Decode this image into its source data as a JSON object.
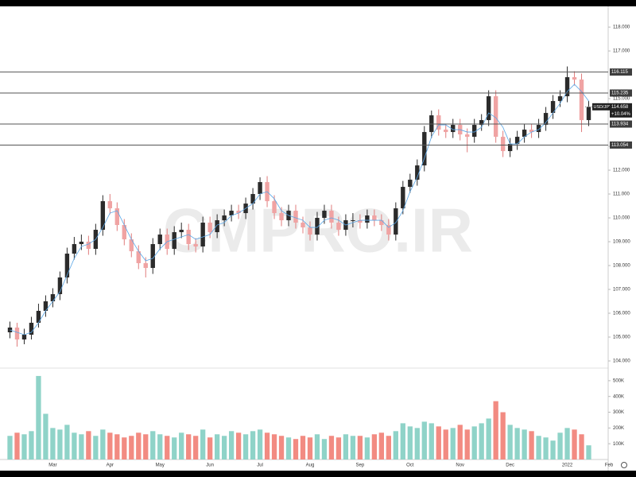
{
  "chart_data": {
    "type": "candlestick",
    "symbol": "USD/JPY",
    "watermark": "CMPRO.IR",
    "categories": [
      "",
      "",
      "",
      "",
      "",
      "",
      "Mar",
      null,
      null,
      null,
      null,
      null,
      null,
      null,
      "Apr",
      null,
      null,
      null,
      null,
      null,
      null,
      "May",
      null,
      null,
      null,
      null,
      null,
      null,
      "Jun",
      null,
      null,
      null,
      null,
      null,
      null,
      "Jul",
      null,
      null,
      null,
      null,
      null,
      null,
      "Aug",
      null,
      null,
      null,
      null,
      null,
      null,
      "Sep",
      null,
      null,
      null,
      null,
      null,
      null,
      "Oct",
      null,
      null,
      null,
      null,
      null,
      null,
      "Nov",
      null,
      null,
      null,
      null,
      null,
      null,
      "Dec",
      null,
      null,
      null,
      null,
      null,
      null,
      null,
      "2022",
      null,
      null,
      null
    ],
    "axis_next_label": "Feb",
    "open": [
      105.2,
      105.4,
      104.9,
      105.1,
      105.6,
      106.1,
      106.5,
      106.8,
      107.5,
      108.5,
      108.9,
      109.0,
      108.7,
      109.5,
      110.7,
      110.4,
      109.7,
      109.1,
      108.6,
      108.1,
      107.9,
      108.9,
      109.3,
      108.7,
      109.4,
      109.5,
      108.9,
      108.8,
      109.8,
      109.4,
      109.9,
      110.1,
      110.3,
      110.2,
      110.6,
      111.0,
      111.5,
      110.7,
      110.2,
      109.9,
      110.3,
      109.8,
      109.6,
      109.3,
      110.0,
      110.3,
      109.8,
      109.5,
      109.9,
      109.9,
      109.8,
      110.1,
      109.9,
      109.7,
      109.3,
      110.4,
      111.3,
      111.6,
      112.2,
      113.6,
      114.3,
      113.7,
      113.6,
      113.9,
      113.5,
      113.4,
      113.9,
      114.1,
      115.1,
      113.4,
      112.8,
      113.1,
      113.4,
      113.7,
      113.6,
      113.9,
      114.4,
      114.9,
      115.1,
      115.9,
      115.8,
      114.1
    ],
    "high": [
      105.65,
      105.6,
      105.35,
      105.85,
      106.4,
      106.75,
      107.05,
      107.75,
      108.75,
      109.2,
      109.3,
      109.25,
      109.75,
      110.95,
      111.0,
      110.65,
      109.95,
      109.35,
      108.85,
      108.35,
      109.15,
      109.55,
      109.55,
      109.65,
      109.8,
      109.75,
      109.15,
      110.05,
      110.05,
      110.15,
      110.35,
      110.55,
      110.55,
      110.85,
      111.25,
      111.7,
      111.75,
      110.95,
      110.45,
      110.55,
      110.55,
      110.05,
      109.85,
      110.25,
      110.55,
      110.55,
      110.05,
      110.15,
      110.2,
      110.15,
      110.35,
      110.35,
      110.15,
      109.95,
      110.65,
      111.55,
      111.85,
      112.45,
      113.85,
      114.5,
      114.55,
      113.95,
      114.15,
      114.15,
      113.75,
      114.15,
      114.35,
      115.35,
      115.35,
      113.65,
      113.35,
      113.65,
      113.95,
      113.95,
      114.15,
      114.65,
      115.15,
      115.35,
      116.35,
      116.15,
      116.05,
      114.9
    ],
    "low": [
      104.95,
      104.6,
      104.7,
      104.9,
      105.4,
      105.85,
      106.25,
      106.55,
      107.25,
      108.25,
      108.65,
      108.45,
      108.45,
      109.25,
      110.15,
      109.45,
      108.85,
      108.35,
      107.85,
      107.5,
      107.65,
      108.65,
      108.45,
      108.45,
      109.15,
      108.65,
      108.55,
      108.55,
      109.15,
      109.15,
      109.65,
      109.85,
      109.95,
      109.95,
      110.35,
      110.75,
      110.45,
      109.95,
      109.65,
      109.65,
      109.55,
      109.35,
      109.05,
      109.05,
      109.75,
      109.55,
      109.25,
      109.25,
      109.6,
      109.55,
      109.55,
      109.65,
      109.45,
      109.05,
      109.05,
      110.15,
      111.05,
      111.35,
      111.95,
      113.35,
      113.45,
      113.35,
      113.35,
      113.25,
      112.75,
      113.15,
      113.65,
      113.85,
      113.15,
      112.55,
      112.55,
      112.85,
      113.15,
      113.35,
      113.35,
      113.65,
      114.15,
      114.65,
      114.85,
      115.55,
      113.6,
      113.85
    ],
    "close": [
      105.4,
      104.9,
      105.1,
      105.6,
      106.1,
      106.5,
      106.8,
      107.5,
      108.5,
      108.9,
      109.0,
      108.7,
      109.5,
      110.7,
      110.4,
      109.7,
      109.1,
      108.6,
      108.1,
      107.9,
      108.9,
      109.3,
      108.7,
      109.4,
      109.5,
      108.9,
      108.8,
      109.8,
      109.4,
      109.9,
      110.1,
      110.3,
      110.2,
      110.6,
      111.0,
      111.5,
      110.7,
      110.2,
      109.9,
      110.3,
      109.8,
      109.6,
      109.3,
      110.0,
      110.3,
      109.8,
      109.5,
      109.9,
      109.9,
      109.8,
      110.1,
      109.9,
      109.7,
      109.3,
      110.4,
      111.3,
      111.6,
      112.2,
      113.6,
      114.3,
      113.7,
      113.6,
      113.9,
      113.5,
      113.4,
      113.9,
      114.1,
      115.1,
      113.4,
      112.8,
      113.1,
      113.4,
      113.7,
      113.6,
      113.9,
      114.4,
      114.9,
      115.1,
      115.9,
      115.8,
      114.1,
      114.658
    ],
    "ma": [
      105.3,
      105.2,
      105.1,
      105.2,
      105.6,
      106.1,
      106.5,
      106.9,
      107.6,
      108.3,
      108.8,
      108.9,
      109.1,
      109.6,
      110.2,
      110.3,
      109.7,
      109.1,
      108.6,
      108.2,
      108.3,
      108.7,
      109.0,
      109.1,
      109.2,
      109.3,
      109.1,
      109.2,
      109.3,
      109.7,
      109.8,
      110.1,
      110.2,
      110.4,
      110.6,
      111.0,
      111.1,
      110.8,
      110.3,
      110.1,
      110.0,
      109.9,
      109.6,
      109.6,
      109.9,
      110.0,
      109.9,
      109.7,
      109.8,
      109.9,
      109.9,
      109.9,
      109.9,
      109.6,
      109.8,
      110.3,
      111.1,
      111.7,
      112.5,
      113.4,
      113.9,
      113.9,
      113.7,
      113.7,
      113.6,
      113.6,
      113.8,
      114.4,
      114.2,
      113.8,
      113.1,
      113.1,
      113.4,
      113.6,
      113.7,
      114.0,
      114.4,
      114.8,
      115.3,
      115.6,
      115.3,
      114.9
    ],
    "volume": [
      150000,
      170000,
      160000,
      180000,
      530000,
      290000,
      200000,
      190000,
      220000,
      170000,
      160000,
      180000,
      150000,
      190000,
      170000,
      160000,
      140000,
      150000,
      170000,
      160000,
      180000,
      160000,
      150000,
      140000,
      170000,
      160000,
      150000,
      190000,
      140000,
      160000,
      150000,
      180000,
      170000,
      160000,
      180000,
      190000,
      170000,
      160000,
      150000,
      140000,
      130000,
      150000,
      140000,
      160000,
      130000,
      150000,
      140000,
      160000,
      150000,
      150000,
      140000,
      160000,
      170000,
      150000,
      180000,
      230000,
      210000,
      200000,
      240000,
      230000,
      210000,
      190000,
      200000,
      220000,
      190000,
      210000,
      230000,
      260000,
      370000,
      300000,
      220000,
      200000,
      190000,
      180000,
      150000,
      140000,
      120000,
      170000,
      200000,
      190000,
      160000,
      90000
    ],
    "up_color": "#2b2b2b",
    "down_color": "#f0a3a3",
    "volume_up_color": "#8fd3c8",
    "volume_down_color": "#f28b82",
    "ma_color": "#5aa6e6",
    "ylim": [
      103.7,
      118.87
    ],
    "yticks": [
      {
        "value": 104,
        "label": "104.000"
      },
      {
        "value": 105,
        "label": "105.000"
      },
      {
        "value": 106,
        "label": "106.000"
      },
      {
        "value": 107,
        "label": "107.000"
      },
      {
        "value": 108,
        "label": "108.000"
      },
      {
        "value": 109,
        "label": "109.000"
      },
      {
        "value": 110,
        "label": "110.000"
      },
      {
        "value": 111,
        "label": "111.000"
      },
      {
        "value": 112,
        "label": "112.000"
      },
      {
        "value": 113,
        "label": "113.000"
      },
      {
        "value": 115,
        "label": "115.000"
      },
      {
        "value": 117,
        "label": "117.000"
      },
      {
        "value": 118,
        "label": "118.000"
      }
    ],
    "volume_ylim": [
      0,
      580000
    ],
    "volume_yticks": [
      {
        "value": 100000,
        "label": "100K"
      },
      {
        "value": 200000,
        "label": "200K"
      },
      {
        "value": 300000,
        "label": "300K"
      },
      {
        "value": 400000,
        "label": "400K"
      },
      {
        "value": 500000,
        "label": "500K"
      }
    ],
    "levels": [
      116.115,
      115.235,
      113.934,
      113.054
    ],
    "last_price": 114.658,
    "change": {
      "value": 10.04,
      "label": "+10.04%"
    }
  }
}
